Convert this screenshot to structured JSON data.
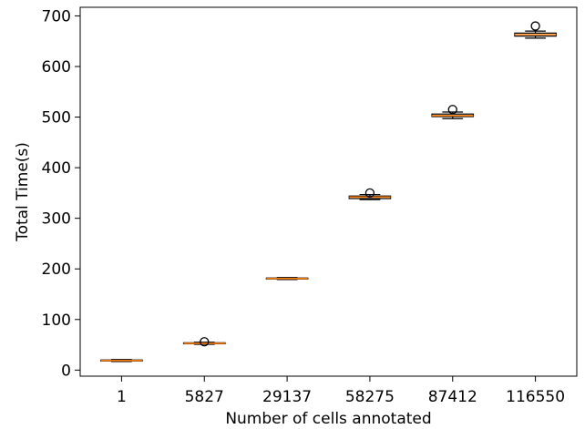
{
  "chart_data": {
    "type": "box",
    "xlabel": "Number of cells annotated",
    "ylabel": "Total Time(s)",
    "ylim": [
      -12,
      717
    ],
    "yticks": [
      0,
      100,
      200,
      300,
      400,
      500,
      600,
      700
    ],
    "grid": false,
    "colors": {
      "median": "#ff7f0e",
      "box": "#000000"
    },
    "categories": [
      "1",
      "5827",
      "29137",
      "58275",
      "87412",
      "116550"
    ],
    "boxes": [
      {
        "category": "1",
        "whislo": 17,
        "q1": 18,
        "med": 19,
        "q3": 20,
        "whishi": 21,
        "fliers": []
      },
      {
        "category": "5827",
        "whislo": 51,
        "q1": 52,
        "med": 53,
        "q3": 54,
        "whishi": 55,
        "fliers": [
          56
        ]
      },
      {
        "category": "29137",
        "whislo": 179,
        "q1": 180,
        "med": 181,
        "q3": 182,
        "whishi": 183,
        "fliers": []
      },
      {
        "category": "58275",
        "whislo": 337,
        "q1": 339,
        "med": 342,
        "q3": 344,
        "whishi": 347,
        "fliers": [
          350
        ]
      },
      {
        "category": "87412",
        "whislo": 497,
        "q1": 501,
        "med": 503,
        "q3": 506,
        "whishi": 510,
        "fliers": [
          515
        ]
      },
      {
        "category": "116550",
        "whislo": 656,
        "q1": 660,
        "med": 663,
        "q3": 666,
        "whishi": 670,
        "fliers": [
          680
        ]
      }
    ]
  }
}
